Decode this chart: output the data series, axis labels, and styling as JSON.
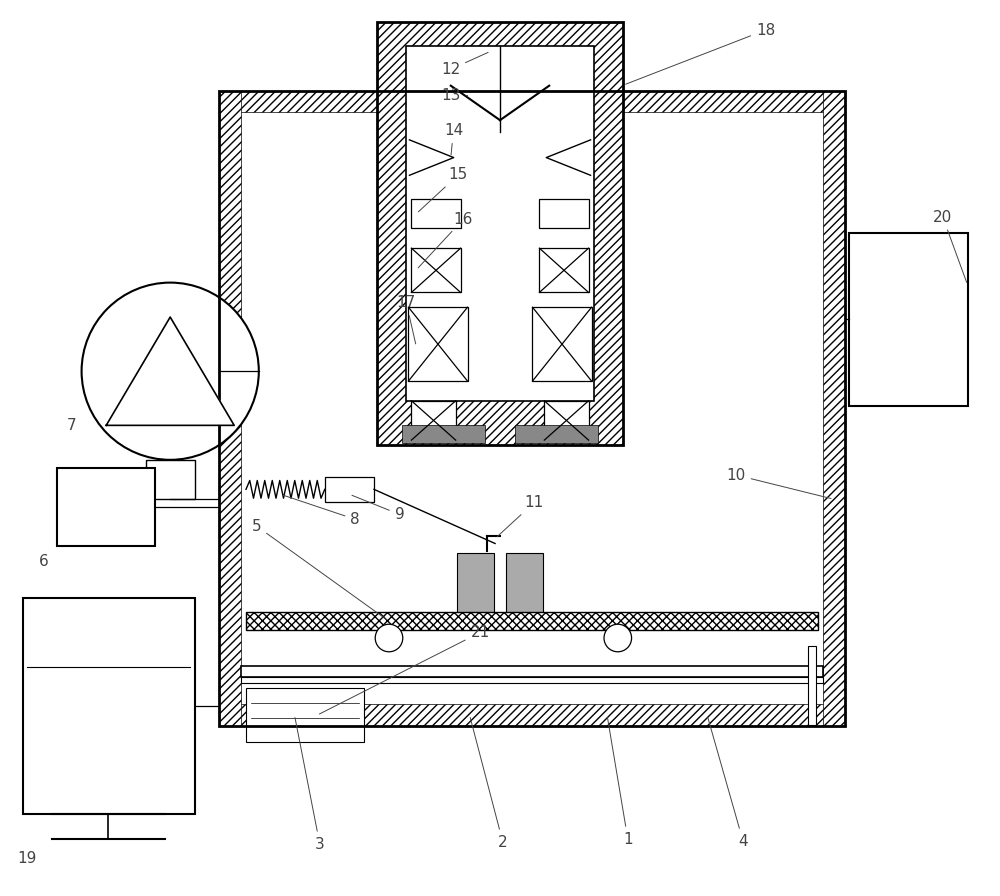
{
  "bg_color": "#ffffff",
  "lc": "#000000",
  "gray": "#999999",
  "dark_gray": "#777777",
  "fig_width": 10.0,
  "fig_height": 8.96
}
